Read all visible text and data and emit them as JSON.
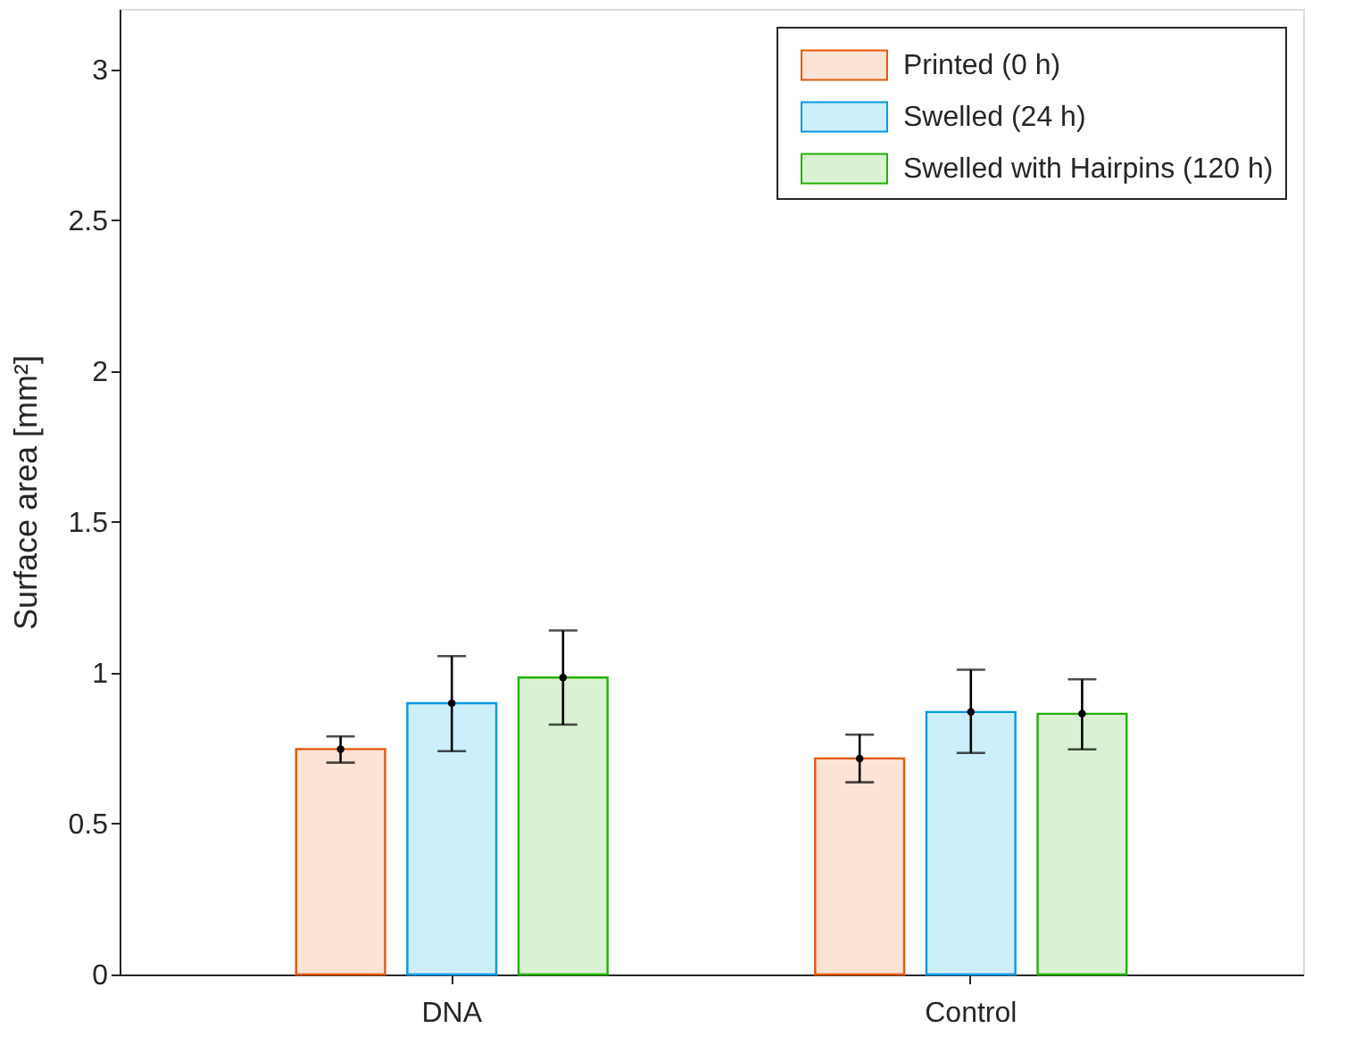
{
  "chart_data": {
    "type": "bar",
    "ylabel": "Surface area [mm²]",
    "categories": [
      "DNA",
      "Control"
    ],
    "series": [
      {
        "name": "Printed (0 h)",
        "color": "#fbe3d6",
        "values": [
          0.747,
          0.716
        ],
        "errors": [
          [
            0.702,
            0.789
          ],
          [
            0.637,
            0.795
          ]
        ]
      },
      {
        "name": "Swelled (24 h)",
        "color": "#cdeefb",
        "values": [
          0.899,
          0.87
        ],
        "errors": [
          [
            0.74,
            1.055
          ],
          [
            0.734,
            1.01
          ]
        ]
      },
      {
        "name": "Swelled with Hairpins (120 h)",
        "color": "#daf2d3",
        "values": [
          0.984,
          0.864
        ],
        "errors": [
          [
            0.828,
            1.14
          ],
          [
            0.746,
            0.978
          ]
        ]
      },
      {
        "type": "scatter",
        "color": "#000000",
        "marker": "circle",
        "x": [
          "DNA",
          "DNA",
          "DNA",
          "Control",
          "Control",
          "Control"
        ],
        "values": [
          0.747,
          0.899,
          0.984,
          0.716,
          0.87,
          0.864
        ]
      }
    ],
    "ylim": [
      0,
      3.2
    ],
    "yticks": [
      0,
      0.5,
      1,
      1.5,
      2,
      2.5,
      3
    ],
    "grid": false,
    "legend": "top right"
  }
}
